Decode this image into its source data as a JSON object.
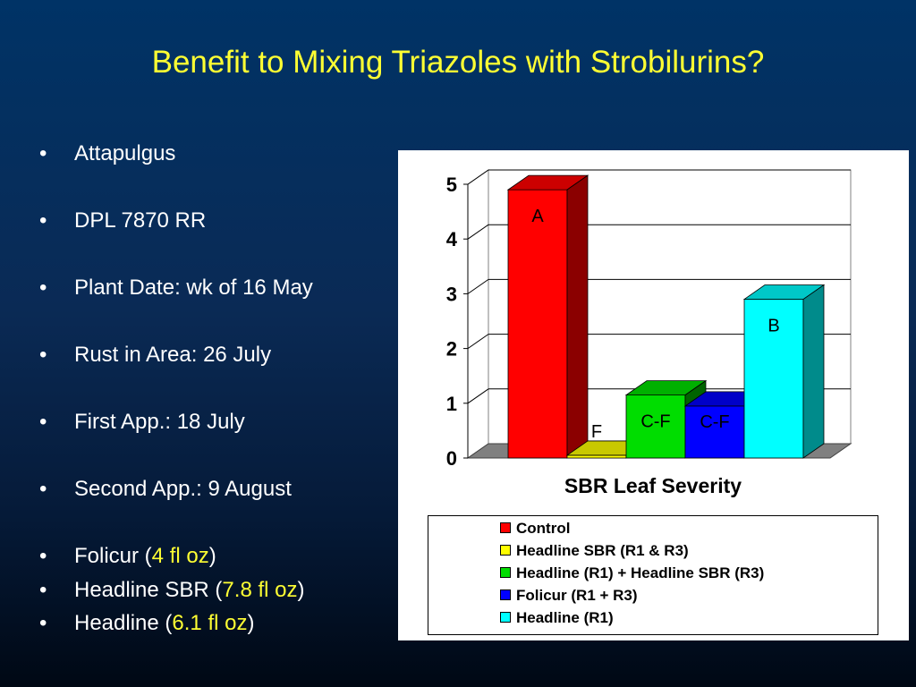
{
  "slide": {
    "title": "Benefit to Mixing Triazoles with Strobilurins?"
  },
  "bullets": [
    {
      "text": "Attapulgus",
      "highlight": "",
      "suffix": ""
    },
    {
      "text": "DPL 7870 RR",
      "highlight": "",
      "suffix": ""
    },
    {
      "text": "Plant Date: wk of 16 May",
      "highlight": "",
      "suffix": ""
    },
    {
      "text": "Rust in Area: 26 July",
      "highlight": "",
      "suffix": ""
    },
    {
      "text": "First App.: 18 July",
      "highlight": "",
      "suffix": ""
    },
    {
      "text": "Second App.: 9 August",
      "highlight": "",
      "suffix": ""
    },
    {
      "text": "Folicur (",
      "highlight": "4 fl oz",
      "suffix": ")"
    },
    {
      "text": "Headline SBR (",
      "highlight": "7.8 fl oz",
      "suffix": ")"
    },
    {
      "text": "Headline (",
      "highlight": "6.1 fl oz",
      "suffix": ")"
    }
  ],
  "bullet_symbol": "•",
  "chart_data": {
    "type": "bar",
    "title": "",
    "xlabel": "SBR Leaf Severity",
    "ylabel": "",
    "ylim": [
      0,
      5
    ],
    "yticks": [
      0,
      1,
      2,
      3,
      4,
      5
    ],
    "grid": true,
    "legend_position": "bottom",
    "categories": [
      "SBR Leaf Severity"
    ],
    "series": [
      {
        "name": "Control",
        "values": [
          4.9
        ],
        "label": "A",
        "color": "#ff0000",
        "side_color": "#8b0000",
        "top_color": "#cc0000"
      },
      {
        "name": "Headline SBR (R1 & R3)",
        "values": [
          0.05
        ],
        "label": "F",
        "color": "#ffff00",
        "side_color": "#8b8b00",
        "top_color": "#c8c800"
      },
      {
        "name": "Headline (R1) + Headline SBR (R3)",
        "values": [
          1.15
        ],
        "label": "C-F",
        "color": "#00dd00",
        "side_color": "#006400",
        "top_color": "#00b000"
      },
      {
        "name": "Folicur (R1 + R3)",
        "values": [
          0.95
        ],
        "label": "C-F",
        "color": "#0000ff",
        "side_color": "#00008b",
        "top_color": "#0000c8"
      },
      {
        "name": "Headline (R1)",
        "values": [
          2.9
        ],
        "label": "B",
        "color": "#00ffff",
        "side_color": "#008b8b",
        "top_color": "#00c8c8"
      }
    ]
  }
}
